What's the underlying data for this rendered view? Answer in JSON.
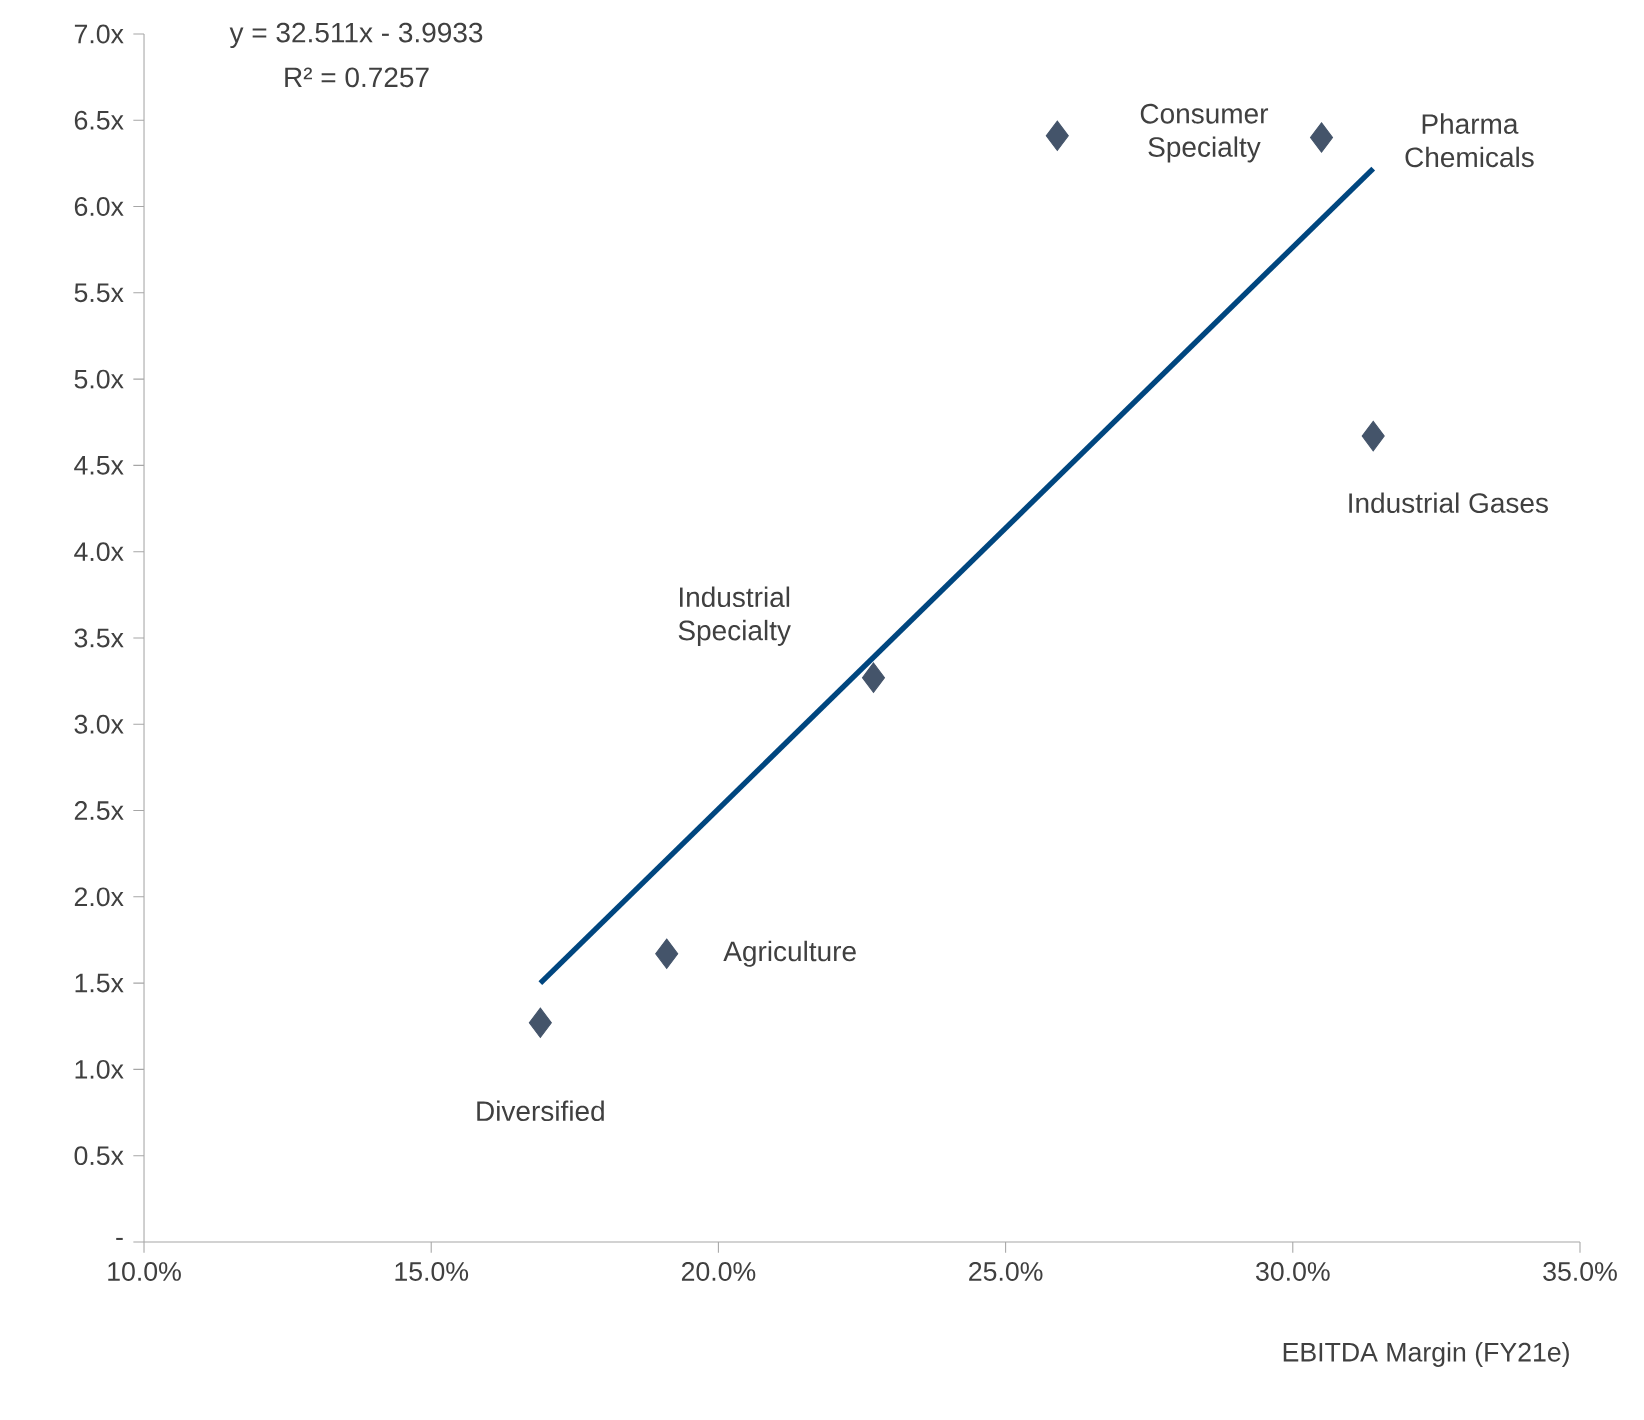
{
  "chart_data": {
    "type": "scatter",
    "xlabel": "EBITDA Margin (FY21e)",
    "xlim": [
      10,
      35
    ],
    "xticks": [
      {
        "value": 10,
        "label": "10.0%"
      },
      {
        "value": 15,
        "label": "15.0%"
      },
      {
        "value": 20,
        "label": "20.0%"
      },
      {
        "value": 25,
        "label": "25.0%"
      },
      {
        "value": 30,
        "label": "30.0%"
      },
      {
        "value": 35,
        "label": "35.0%"
      }
    ],
    "ylim": [
      0,
      7
    ],
    "yticks": [
      {
        "value": 0,
        "label": "-"
      },
      {
        "value": 0.5,
        "label": "0.5x"
      },
      {
        "value": 1,
        "label": "1.0x"
      },
      {
        "value": 1.5,
        "label": "1.5x"
      },
      {
        "value": 2,
        "label": "2.0x"
      },
      {
        "value": 2.5,
        "label": "2.5x"
      },
      {
        "value": 3,
        "label": "3.0x"
      },
      {
        "value": 3.5,
        "label": "3.5x"
      },
      {
        "value": 4,
        "label": "4.0x"
      },
      {
        "value": 4.5,
        "label": "4.5x"
      },
      {
        "value": 5,
        "label": "5.0x"
      },
      {
        "value": 5.5,
        "label": "5.5x"
      },
      {
        "value": 6,
        "label": "6.0x"
      },
      {
        "value": 6.5,
        "label": "6.5x"
      },
      {
        "value": 7,
        "label": "7.0x"
      }
    ],
    "series": [
      {
        "marker": "diamond",
        "color": "#44546a",
        "x": [
          16.9,
          19.1,
          22.7,
          25.9,
          30.5,
          31.4
        ],
        "values": [
          1.27,
          1.67,
          3.27,
          6.41,
          6.4,
          4.67
        ]
      },
      {
        "type": "line",
        "color": "#00467f",
        "x": [
          16.9,
          31.4
        ],
        "values": [
          1.5,
          6.22
        ]
      }
    ],
    "annotations": [
      "y = 32.511x - 3.9933",
      "R² = 0.7257",
      {
        "text": "Diversified",
        "x": 16.9,
        "y": 1.27
      },
      {
        "text": "Agriculture",
        "x": 19.1,
        "y": 1.67
      },
      "Industrial Specialty",
      {
        "text": "Consumer Specialty",
        "x": 25.9,
        "y": 6.41
      },
      "Pharma Chemicals",
      {
        "text": "Industrial Gases",
        "x": 31.4,
        "y": 4.67
      }
    ]
  }
}
